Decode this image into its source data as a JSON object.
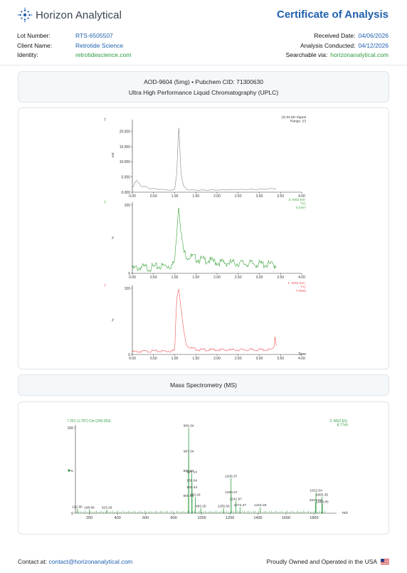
{
  "header": {
    "company": "Horizon Analytical",
    "title": "Certificate of Analysis",
    "lot_label": "Lot Number:",
    "lot_value": "RTS-6505507",
    "client_label": "Client Name:",
    "client_value": "Retrotide Science",
    "identity_label": "Identity:",
    "identity_value": "retrotidescience.com",
    "received_label": "Received Date:",
    "received_value": "04/06/2026",
    "conducted_label": "Analysis Conducted:",
    "conducted_value": "04/12/2026",
    "searchable_label": "Searchable via:",
    "searchable_value": "horizonanalytical.com"
  },
  "sample": {
    "line1": "AOD-9604 (5mg) • Pubchem CID: 71300630",
    "line2": "Ultra High Performance Liquid Chromatography (UPLC)"
  },
  "ms_section_title": "Mass Spectrometry (MS)",
  "footer": {
    "contact_label": "Contact at:",
    "contact_email": "contact@horizonanalytical.com",
    "ownership": "Proudly Owned and Operated in the USA"
  },
  "colors": {
    "brand_blue": "#1f5fae",
    "link_green": "#2e9b3e",
    "elsd_trace": "#8a8a8a",
    "es_neg_trace": "#3aa33a",
    "es_pos_trace": "#f0555a"
  },
  "chart_data": [
    {
      "type": "line",
      "panel": "ELSD",
      "corner_label": "7",
      "legend_lines": [
        "(2) ELSD Signal",
        "Range: 23"
      ],
      "ylabel": "mV",
      "yticks": [
        "0.000",
        "5.000",
        "10.000",
        "15.000",
        "20.000"
      ],
      "ylim": [
        0,
        23000
      ],
      "xticks": [
        "0.00",
        "0.50",
        "1.00",
        "1.50",
        "2.00",
        "2.50",
        "3.00",
        "3.50",
        "4.00"
      ],
      "xlim": [
        0,
        4
      ],
      "x": [
        0.0,
        0.05,
        0.1,
        0.15,
        0.2,
        0.25,
        0.3,
        0.4,
        0.5,
        0.6,
        0.7,
        0.8,
        0.9,
        1.0,
        1.05,
        1.08,
        1.1,
        1.12,
        1.15,
        1.2,
        1.25,
        1.3,
        1.4,
        1.6,
        1.8,
        2.0,
        2.5,
        3.0,
        3.4
      ],
      "y": [
        1200,
        2800,
        3900,
        3200,
        2100,
        1700,
        1900,
        1300,
        1100,
        1000,
        900,
        800,
        700,
        900,
        6500,
        17000,
        22000,
        15000,
        6000,
        2400,
        1400,
        900,
        700,
        650,
        700,
        750,
        850,
        950,
        1200
      ]
    },
    {
      "type": "line",
      "panel": "MS2 ES-",
      "corner_label": "7",
      "legend_lines": [
        "2: MS2 ES-",
        "TIC",
        "3.21e7"
      ],
      "ylabel": "%",
      "yticks": [
        "0",
        "100"
      ],
      "ylim": [
        0,
        100
      ],
      "xticks": [
        "0.00",
        "0.50",
        "1.00",
        "1.50",
        "2.00",
        "2.50",
        "3.00",
        "3.50",
        "4.00"
      ],
      "xlim": [
        0,
        4
      ],
      "x": [
        0.0,
        0.2,
        0.4,
        0.6,
        0.8,
        0.95,
        1.0,
        1.03,
        1.06,
        1.08,
        1.1,
        1.12,
        1.15,
        1.18,
        1.22,
        1.3,
        1.4,
        1.6,
        1.8,
        2.0,
        2.4,
        2.8,
        3.2,
        3.4
      ],
      "y": [
        6,
        9,
        8,
        10,
        11,
        12,
        18,
        45,
        70,
        92,
        100,
        85,
        60,
        45,
        30,
        25,
        24,
        20,
        19,
        16,
        15,
        14,
        13,
        12
      ]
    },
    {
      "type": "line",
      "panel": "MS1 ES+",
      "corner_label": "7",
      "legend_lines": [
        "1: MS2 ES+",
        "TIC",
        "7.60e6"
      ],
      "ylabel": "%",
      "yticks": [
        "0",
        "100"
      ],
      "ylim": [
        0,
        100
      ],
      "xlabel": "Time",
      "xticks": [
        "0.00",
        "0.50",
        "1.00",
        "1.50",
        "2.00",
        "2.50",
        "3.00",
        "3.50",
        "4.00"
      ],
      "xlim": [
        0,
        4
      ],
      "x": [
        0.0,
        0.4,
        0.8,
        1.0,
        1.03,
        1.05,
        1.08,
        1.1,
        1.12,
        1.15,
        1.2,
        1.25,
        1.3,
        1.4,
        1.6,
        2.0,
        2.5,
        3.0,
        3.3,
        3.35,
        3.37,
        3.4
      ],
      "y": [
        4,
        5,
        5,
        6,
        60,
        85,
        97,
        100,
        88,
        70,
        42,
        22,
        13,
        9,
        7,
        7,
        7,
        7,
        7,
        12,
        28,
        14
      ]
    },
    {
      "type": "bar",
      "panel": "MS spectrum",
      "header_left": "7 251 (1.757) Cm (243:253)",
      "legend_lines": [
        "2: MS2 ES-",
        "8.77e5"
      ],
      "ylabel": "%",
      "yticks": [
        "0",
        "100"
      ],
      "ylim": [
        0,
        100
      ],
      "xlabel": "m/z",
      "xticks": [
        "200",
        "400",
        "600",
        "800",
        "1000",
        "1200",
        "1400",
        "1600",
        "1800"
      ],
      "xlim": [
        100,
        1960
      ],
      "peaks": [
        {
          "mz": 112.95,
          "intensity": 5,
          "label": "112.95"
        },
        {
          "mz": 198.66,
          "intensity": 4,
          "label": "198.66"
        },
        {
          "mz": 323.28,
          "intensity": 4,
          "label": "323.28"
        },
        {
          "mz": 905.04,
          "intensity": 18,
          "label": "905.04"
        },
        {
          "mz": 905.84,
          "intensity": 47,
          "label": "905.84"
        },
        {
          "mz": 906.34,
          "intensity": 100,
          "label": "906.34"
        },
        {
          "mz": 907.04,
          "intensity": 70,
          "label": "907.04"
        },
        {
          "mz": 929.14,
          "intensity": 46,
          "label": "929.14"
        },
        {
          "mz": 930.04,
          "intensity": 36,
          "label": "930.04"
        },
        {
          "mz": 930.44,
          "intensity": 28,
          "label": "930.44"
        },
        {
          "mz": 953.24,
          "intensity": 19,
          "label": "953.24"
        },
        {
          "mz": 993.25,
          "intensity": 6,
          "label": "993.25"
        },
        {
          "mz": 1155.56,
          "intensity": 6,
          "label": "1155.56"
        },
        {
          "mz": 1208.37,
          "intensity": 41,
          "label": "1208.37"
        },
        {
          "mz": 1209.37,
          "intensity": 22,
          "label": "1209.37"
        },
        {
          "mz": 1241.97,
          "intensity": 14,
          "label": "1241.97"
        },
        {
          "mz": 1272.37,
          "intensity": 7,
          "label": "1272.37"
        },
        {
          "mz": 1416.28,
          "intensity": 7,
          "label": "1416.28"
        },
        {
          "mz": 1810.04,
          "intensity": 13,
          "label": "1810.04"
        },
        {
          "mz": 1813.54,
          "intensity": 24,
          "label": "1813.54"
        },
        {
          "mz": 1855.35,
          "intensity": 19,
          "label": "1855.35"
        },
        {
          "mz": 1858.85,
          "intensity": 11,
          "label": "1858.85"
        }
      ]
    }
  ]
}
